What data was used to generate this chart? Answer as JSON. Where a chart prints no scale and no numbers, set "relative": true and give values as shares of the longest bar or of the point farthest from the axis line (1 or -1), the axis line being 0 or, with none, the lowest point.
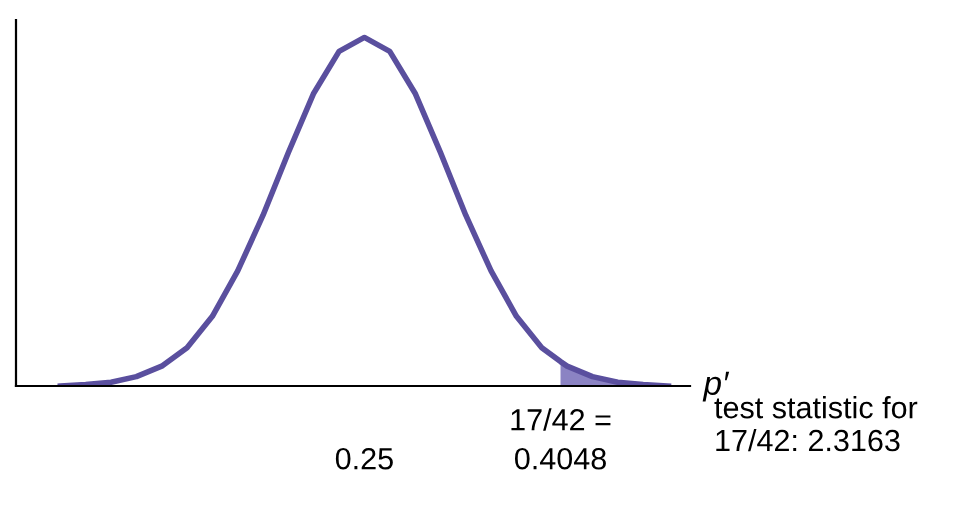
{
  "chart_data": {
    "type": "line",
    "relative": true,
    "x": [
      0.01,
      0.03,
      0.05,
      0.07,
      0.09,
      0.11,
      0.13,
      0.15,
      0.17,
      0.19,
      0.21,
      0.23,
      0.25,
      0.27,
      0.29,
      0.31,
      0.33,
      0.35,
      0.37,
      0.39,
      0.4048,
      0.41,
      0.43,
      0.45,
      0.47,
      0.49
    ],
    "series": [
      {
        "color": "#5a4f9e",
        "values": [
          0.0,
          0.004,
          0.011,
          0.027,
          0.057,
          0.11,
          0.2,
          0.33,
          0.49,
          0.67,
          0.84,
          0.96,
          1.0,
          0.96,
          0.84,
          0.67,
          0.49,
          0.33,
          0.2,
          0.11,
          0.07,
          0.057,
          0.027,
          0.011,
          0.004,
          0.0
        ]
      },
      {
        "type": "area",
        "color": "#8b83c3",
        "x": [
          0.4048,
          0.41,
          0.43,
          0.45,
          0.47,
          0.49
        ],
        "values": [
          0.07,
          0.057,
          0.027,
          0.011,
          0.004,
          0.0
        ]
      }
    ],
    "xlim": [
      -0.025,
      0.507
    ],
    "xticks": [
      0.25,
      0.4048
    ],
    "xlabel": "p′",
    "annotations": [
      {
        "text": "17/42 =",
        "x": 0.4048,
        "y": 0
      },
      "test statistic for\n17/42: 2.3163"
    ],
    "grid": false,
    "legend": false,
    "marker": "none",
    "line_style": "solid"
  }
}
